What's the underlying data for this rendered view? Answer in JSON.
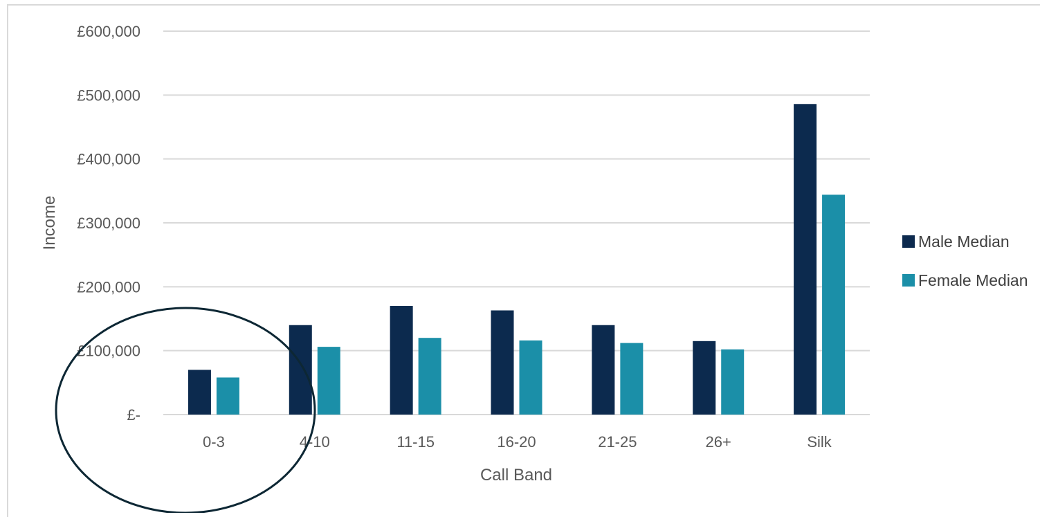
{
  "chart_data": {
    "type": "bar",
    "categories": [
      "0-3",
      "4-10",
      "11-15",
      "16-20",
      "21-25",
      "26+",
      "Silk"
    ],
    "series": [
      {
        "name": "Male Median",
        "color": "#0c2a4e",
        "values": [
          70000,
          140000,
          170000,
          163000,
          140000,
          115000,
          486000
        ]
      },
      {
        "name": "Female Median",
        "color": "#1b8fa8",
        "values": [
          58000,
          106000,
          120000,
          116000,
          112000,
          102000,
          344000
        ]
      }
    ],
    "ylim": [
      0,
      600000
    ],
    "y_ticks": [
      0,
      100000,
      200000,
      300000,
      400000,
      500000,
      600000
    ],
    "y_tick_labels": [
      "£-",
      "£100,000",
      "£200,000",
      "£300,000",
      "£400,000",
      "£500,000",
      "£600,000"
    ],
    "xlabel": "Call Band",
    "ylabel": "Income",
    "grid": true,
    "legend_position": "right",
    "annotation": "ellipse highlighting 0-3 call band"
  }
}
